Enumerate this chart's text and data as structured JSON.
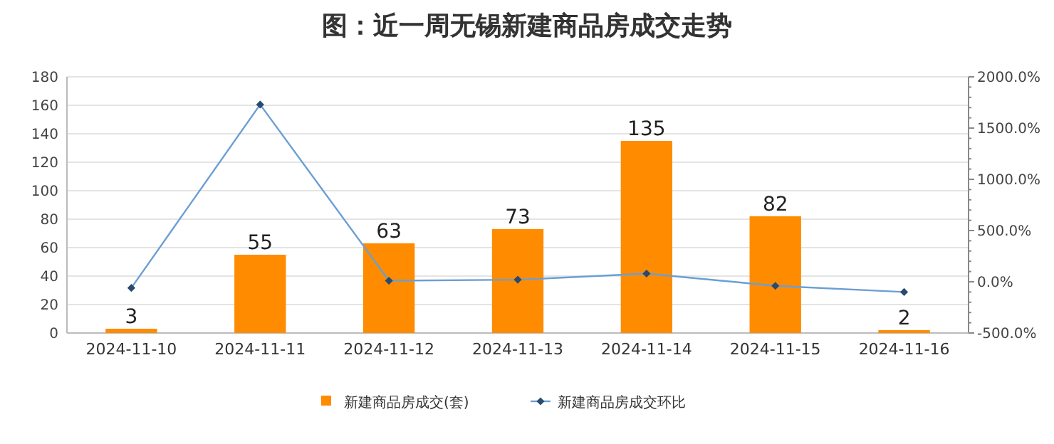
{
  "chart_data": {
    "type": "bar",
    "title": "图：近一周无锡新建商品房成交走势",
    "categories": [
      "2024-11-10",
      "2024-11-11",
      "2024-11-12",
      "2024-11-13",
      "2024-11-14",
      "2024-11-15",
      "2024-11-16"
    ],
    "series": [
      {
        "name": "新建商品房成交(套)",
        "color": "#ff8c00",
        "values": [
          3,
          55,
          63,
          73,
          135,
          82,
          2
        ],
        "value_labels": [
          "3",
          "55",
          "63",
          "73",
          "135",
          "82",
          "2"
        ]
      },
      {
        "name": "新建商品房成交环比",
        "type": "line",
        "axis": "y2",
        "color": "#6a9fd4",
        "marker": "diamond",
        "values": [
          -60,
          1730,
          10,
          20,
          80,
          -40,
          -100
        ]
      }
    ],
    "ylim": [
      0,
      180
    ],
    "yticks": [
      0,
      20,
      40,
      60,
      80,
      100,
      120,
      140,
      160,
      180
    ],
    "y2lim": [
      -500,
      2000
    ],
    "y2ticks": [
      {
        "value": -500,
        "label": "-500.0%"
      },
      {
        "value": 0,
        "label": "0.0%"
      },
      {
        "value": 500,
        "label": "500.0%"
      },
      {
        "value": 1000,
        "label": "1000.0%"
      },
      {
        "value": 1500,
        "label": "1500.0%"
      },
      {
        "value": 2000,
        "label": "2000.0%"
      }
    ],
    "grid": "y",
    "legend": "bottom"
  }
}
